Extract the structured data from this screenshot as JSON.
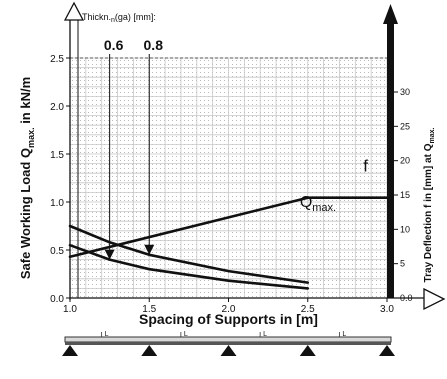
{
  "chart_data": {
    "type": "line",
    "title": "",
    "xlabel": "Spacing of Supports in [m]",
    "ylabel": "Safe Working Load Q",
    "ylabel_sub": "max.",
    "ylabel_unit": "in kN/m",
    "y2label": "Tray Deflection f in [mm] at Q",
    "y2label_sub": "max.",
    "thickness_label_pre": "Thickn.",
    "thickness_label_post": "(ga) [mm]:",
    "xlim": [
      1.0,
      3.0
    ],
    "ylim": [
      0.0,
      2.5
    ],
    "y2lim": [
      0,
      30
    ],
    "x_ticks": [
      "1.0",
      "1.5",
      "2.0",
      "2.5",
      "3.0"
    ],
    "y_ticks": [
      "0.0",
      "0.5",
      "1.0",
      "1.5",
      "2.0",
      "2.5"
    ],
    "y2_ticks": [
      "0.0",
      "5",
      "10",
      "15",
      "20",
      "25",
      "30"
    ],
    "thickness_labels": [
      {
        "label": "0.6",
        "x": 1.25
      },
      {
        "label": "0.8",
        "x": 1.5
      }
    ],
    "series": [
      {
        "id": "q06",
        "points": [
          [
            1.0,
            0.55
          ],
          [
            1.25,
            0.4
          ],
          [
            1.5,
            0.3
          ],
          [
            2.0,
            0.18
          ],
          [
            2.5,
            0.1
          ]
        ]
      },
      {
        "id": "q08",
        "points": [
          [
            1.0,
            0.75
          ],
          [
            1.25,
            0.58
          ],
          [
            1.5,
            0.45
          ],
          [
            2.0,
            0.28
          ],
          [
            2.5,
            0.16
          ]
        ]
      },
      {
        "id": "deflection",
        "axis": "y2",
        "points": [
          [
            1.0,
            6.0
          ],
          [
            2.5,
            14.6
          ],
          [
            3.0,
            14.6
          ]
        ]
      }
    ],
    "annotations": [
      {
        "id": "qmax",
        "text": "Q",
        "sub": "max.",
        "x": 2.45,
        "y": 0.95
      },
      {
        "id": "f",
        "text": "f",
        "x": 2.85,
        "y": 1.32
      }
    ],
    "diagram": {
      "span_label": "L",
      "spans": 5
    }
  }
}
